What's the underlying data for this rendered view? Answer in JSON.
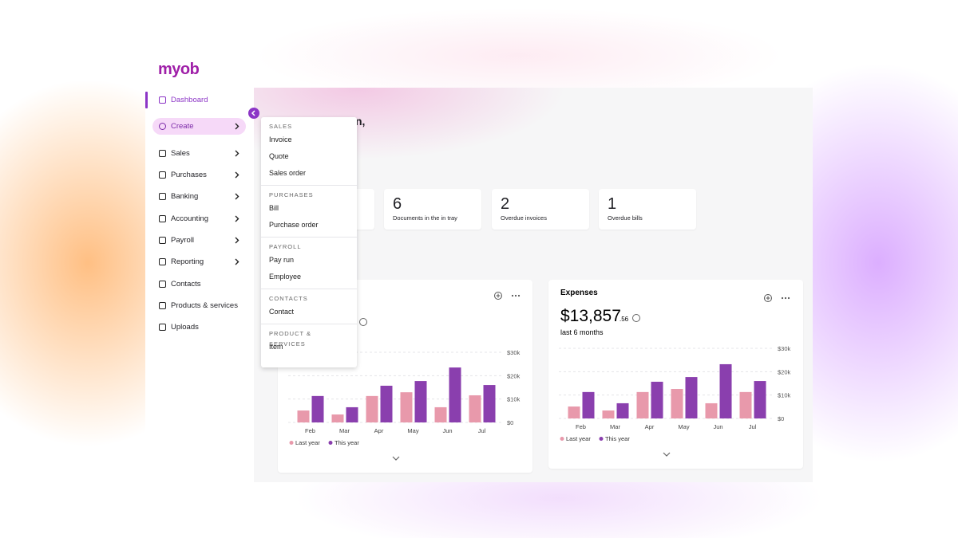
{
  "brand": "myob",
  "nav": [
    {
      "label": "Dashboard",
      "active": true
    },
    {
      "label": "Create",
      "chevron": true,
      "open": true
    },
    {
      "label": "Sales",
      "chevron": true
    },
    {
      "label": "Purchases",
      "chevron": true
    },
    {
      "label": "Banking",
      "chevron": true
    },
    {
      "label": "Accounting",
      "chevron": true
    },
    {
      "label": "Payroll",
      "chevron": true
    },
    {
      "label": "Reporting",
      "chevron": true
    },
    {
      "label": "Contacts"
    },
    {
      "label": "Products & services"
    },
    {
      "label": "Uploads"
    }
  ],
  "menu": {
    "sections": [
      {
        "title": "SALES",
        "items": [
          "Invoice",
          "Quote",
          "Sales order"
        ]
      },
      {
        "title": "PURCHASES",
        "items": [
          "Bill",
          "Purchase order"
        ]
      },
      {
        "title": "PAYROLL",
        "items": [
          "Pay run",
          "Employee"
        ]
      },
      {
        "title": "CONTACTS",
        "items": [
          "Contact"
        ]
      },
      {
        "title": "PRODUCT & SERVICES",
        "items": [
          "Item"
        ]
      }
    ]
  },
  "greeting": "n,",
  "stats": [
    {
      "value": 6,
      "label": "Documents in the in tray"
    },
    {
      "value": 2,
      "label": "Overdue invoices"
    },
    {
      "value": 1,
      "label": "Overdue bills"
    }
  ],
  "chart_data": [
    {
      "type": "bar",
      "categories": [
        "Feb",
        "Mar",
        "Apr",
        "May",
        "Jun",
        "Jul"
      ],
      "series": [
        {
          "name": "Last year",
          "color": "#e899ab",
          "values": [
            5100,
            3400,
            11300,
            12900,
            6500,
            11600
          ]
        },
        {
          "name": "This year",
          "color": "#8a3fae",
          "values": [
            11300,
            6500,
            15700,
            17700,
            23500,
            16000
          ]
        }
      ],
      "ylim": [
        0,
        30000
      ],
      "yticks": [
        {
          "value": 0,
          "label": "$0"
        },
        {
          "value": 10000,
          "label": "$10k"
        },
        {
          "value": 20000,
          "label": "$20k"
        },
        {
          "value": 30000,
          "label": "$30k"
        }
      ],
      "grid": true,
      "legend": "bottom-left"
    },
    {
      "type": "bar",
      "title": "Expenses",
      "amount": "$13,857",
      "amount_cents": ".56",
      "subtitle": "last 6 months",
      "categories": [
        "Feb",
        "Mar",
        "Apr",
        "May",
        "Jun",
        "Jul"
      ],
      "series": [
        {
          "name": "Last year",
          "color": "#e899ab",
          "values": [
            5100,
            3400,
            11300,
            12600,
            6500,
            11300
          ]
        },
        {
          "name": "This year",
          "color": "#8a3fae",
          "values": [
            11300,
            6500,
            15700,
            17700,
            23200,
            16000
          ]
        }
      ],
      "ylim": [
        0,
        30000
      ],
      "yticks": [
        {
          "value": 0,
          "label": "$0"
        },
        {
          "value": 10000,
          "label": "$10k"
        },
        {
          "value": 20000,
          "label": "$20k"
        },
        {
          "value": 30000,
          "label": "$30k"
        }
      ],
      "grid": true,
      "legend": "bottom-left"
    }
  ]
}
